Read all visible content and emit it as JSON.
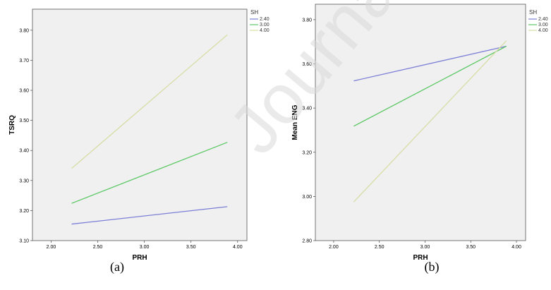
{
  "watermark": "Journal",
  "chart_data": [
    {
      "type": "line",
      "caption": "(a)",
      "xlabel": "PRH",
      "ylabel": "TSRQ",
      "xlim": [
        1.8,
        4.1
      ],
      "ylim": [
        3.1,
        3.87
      ],
      "xticks": [
        2.0,
        2.5,
        3.0,
        3.5,
        4.0
      ],
      "yticks": [
        3.1,
        3.2,
        3.3,
        3.4,
        3.5,
        3.6,
        3.7,
        3.8
      ],
      "legend_title": "SH",
      "grid": false,
      "legend_position": "top-right, outside",
      "x": [
        2.22,
        3.89
      ],
      "series": [
        {
          "name": "2.40",
          "color": "#7b7fd6",
          "values": [
            3.155,
            3.213
          ]
        },
        {
          "name": "3.00",
          "color": "#5cc866",
          "values": [
            3.224,
            3.427
          ]
        },
        {
          "name": "4.00",
          "color": "#d8dda6",
          "values": [
            3.34,
            3.785
          ]
        }
      ]
    },
    {
      "type": "line",
      "caption": "(b)",
      "xlabel": "PRH",
      "ylabel": "Mean ENG",
      "xlim": [
        1.8,
        4.1
      ],
      "ylim": [
        2.8,
        3.87
      ],
      "xticks": [
        2.0,
        2.5,
        3.0,
        3.5,
        4.0
      ],
      "yticks": [
        2.8,
        3.0,
        3.2,
        3.4,
        3.6,
        3.8
      ],
      "legend_title": "SH",
      "grid": false,
      "legend_position": "top-right, outside",
      "x": [
        2.22,
        3.89
      ],
      "series": [
        {
          "name": "2.40",
          "color": "#7b7fd6",
          "values": [
            3.523,
            3.68
          ]
        },
        {
          "name": "3.00",
          "color": "#5cc866",
          "values": [
            3.318,
            3.68
          ]
        },
        {
          "name": "4.00",
          "color": "#d8dda6",
          "values": [
            2.975,
            3.705
          ]
        }
      ]
    }
  ]
}
